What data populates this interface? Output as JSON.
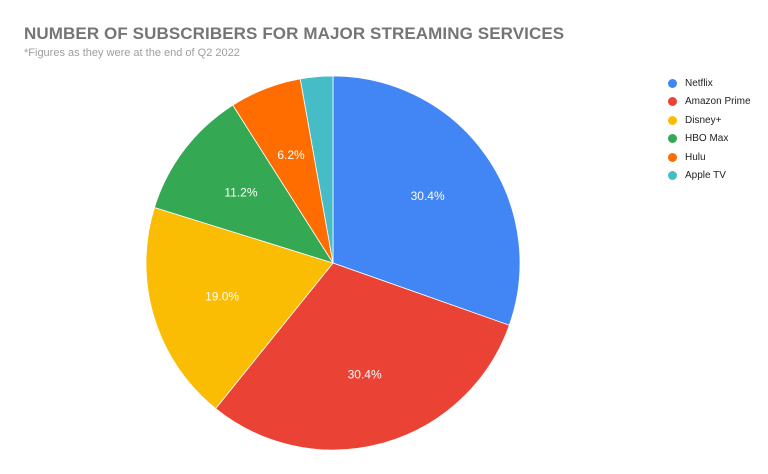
{
  "chart_data": {
    "type": "pie",
    "title": "NUMBER OF SUBSCRIBERS FOR MAJOR STREAMING SERVICES",
    "subtitle": "*Figures as they were at the end of Q2 2022",
    "categories": [
      "Netflix",
      "Amazon Prime",
      "Disney+",
      "HBO Max",
      "Hulu",
      "Apple TV"
    ],
    "values": [
      30.4,
      30.4,
      19.0,
      11.2,
      6.2,
      2.8
    ],
    "labels": [
      "30.4%",
      "30.4%",
      "19.0%",
      "11.2%",
      "6.2%",
      ""
    ],
    "colors": [
      "#4285f4",
      "#ea4335",
      "#fbbc04",
      "#34a853",
      "#ff6d01",
      "#46bdc6"
    ],
    "legend_position": "right",
    "start_angle_deg": 0,
    "direction": "clockwise"
  }
}
